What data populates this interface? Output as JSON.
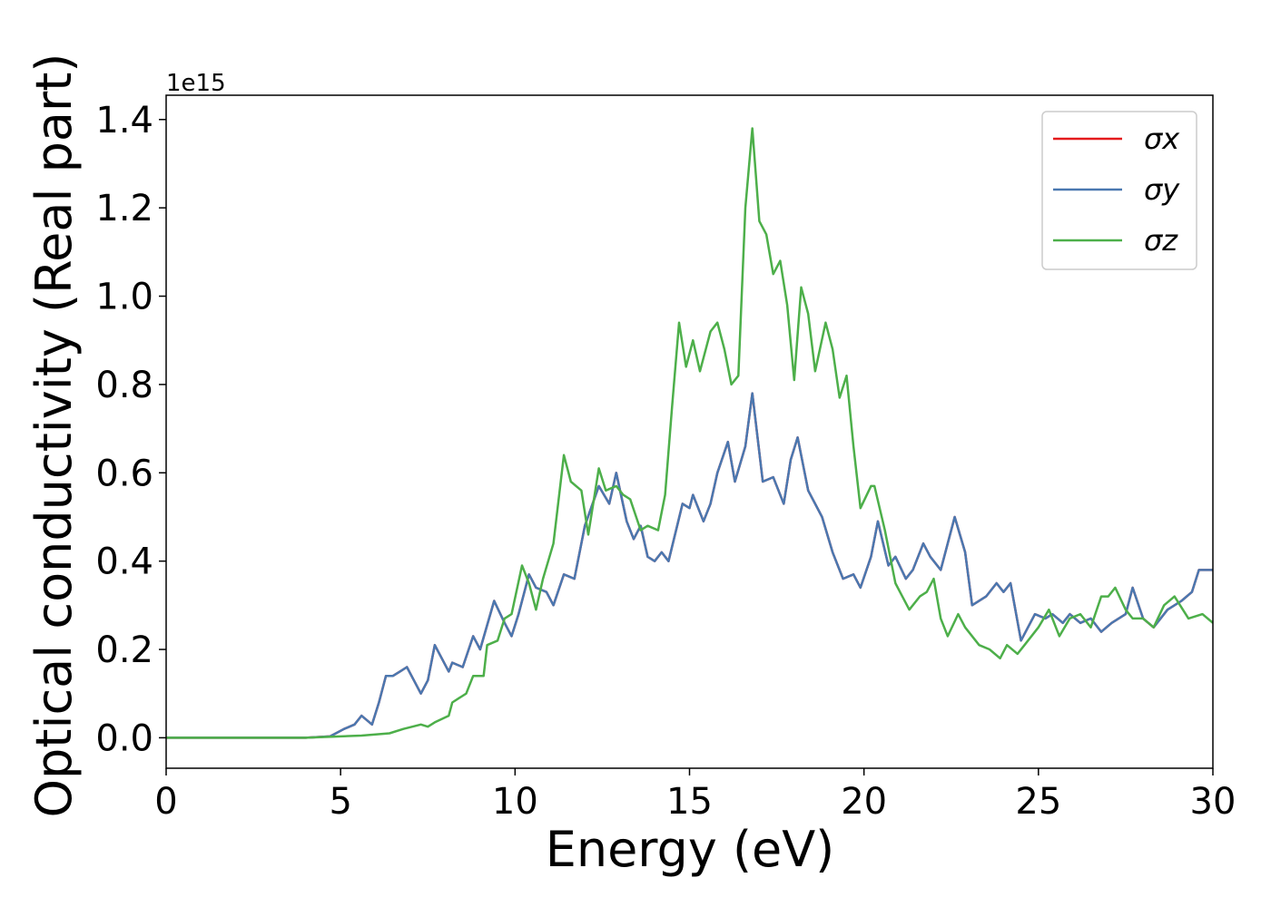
{
  "chart_data": {
    "type": "line",
    "xlabel": "Energy (eV)",
    "ylabel": "Optical conductivity (Real part)",
    "y_offset_text": "1e15",
    "xlim": [
      0,
      30
    ],
    "xticks": [
      0,
      5,
      10,
      15,
      20,
      25,
      30
    ],
    "ylim": [
      -0.069,
      1.455
    ],
    "yticks": [
      {
        "value": 0,
        "label": "0.0"
      },
      {
        "value": 0.2,
        "label": "0.2"
      },
      {
        "value": 0.4,
        "label": "0.4"
      },
      {
        "value": 0.6,
        "label": "0.6"
      },
      {
        "value": 0.8,
        "label": "0.8"
      },
      {
        "value": 1.0,
        "label": "1.0"
      },
      {
        "value": 1.2,
        "label": "1.2"
      },
      {
        "value": 1.4,
        "label": "1.4"
      }
    ],
    "grid": false,
    "legend": "upper right",
    "series": [
      {
        "name": "σx",
        "color": "#e41a1c",
        "x": [
          0,
          4,
          4.7,
          5.1,
          5.4,
          5.6,
          5.9,
          6.1,
          6.3,
          6.5,
          6.7,
          6.9,
          7.1,
          7.3,
          7.5,
          7.7,
          7.9,
          8.1,
          8.2,
          8.5,
          8.8,
          9.0,
          9.4,
          9.7,
          9.9,
          10.1,
          10.4,
          10.6,
          10.9,
          11.1,
          11.4,
          11.7,
          12.0,
          12.4,
          12.7,
          12.9,
          13.2,
          13.4,
          13.6,
          13.8,
          14.0,
          14.2,
          14.4,
          14.8,
          15.0,
          15.1,
          15.4,
          15.6,
          15.8,
          16.1,
          16.3,
          16.6,
          16.8,
          17.1,
          17.4,
          17.7,
          17.9,
          18.1,
          18.4,
          18.8,
          19.1,
          19.4,
          19.7,
          19.9,
          20.2,
          20.4,
          20.7,
          20.9,
          21.2,
          21.4,
          21.7,
          21.9,
          22.2,
          22.4,
          22.6,
          22.9,
          23.1,
          23.5,
          23.8,
          24.0,
          24.2,
          24.5,
          24.9,
          25.2,
          25.4,
          25.7,
          25.9,
          26.2,
          26.5,
          26.8,
          27.1,
          27.5,
          27.7,
          28.0,
          28.3,
          28.7,
          29.1,
          29.4,
          29.6,
          30
        ],
        "values": [
          0,
          0,
          0.003,
          0.02,
          0.03,
          0.05,
          0.03,
          0.08,
          0.14,
          0.14,
          0.15,
          0.16,
          0.13,
          0.1,
          0.13,
          0.21,
          0.18,
          0.15,
          0.17,
          0.16,
          0.23,
          0.2,
          0.31,
          0.26,
          0.23,
          0.28,
          0.37,
          0.34,
          0.33,
          0.3,
          0.37,
          0.36,
          0.48,
          0.57,
          0.53,
          0.6,
          0.49,
          0.45,
          0.48,
          0.41,
          0.4,
          0.42,
          0.4,
          0.53,
          0.52,
          0.55,
          0.49,
          0.53,
          0.6,
          0.67,
          0.58,
          0.66,
          0.78,
          0.58,
          0.59,
          0.53,
          0.63,
          0.68,
          0.56,
          0.5,
          0.42,
          0.36,
          0.37,
          0.34,
          0.41,
          0.49,
          0.39,
          0.41,
          0.36,
          0.38,
          0.44,
          0.41,
          0.38,
          0.44,
          0.5,
          0.42,
          0.3,
          0.32,
          0.35,
          0.33,
          0.35,
          0.22,
          0.28,
          0.27,
          0.28,
          0.26,
          0.28,
          0.26,
          0.27,
          0.24,
          0.26,
          0.28,
          0.34,
          0.27,
          0.25,
          0.29,
          0.31,
          0.33,
          0.38,
          0.38
        ]
      },
      {
        "name": "σy",
        "color": "#4a78b0",
        "x": [
          0,
          4,
          4.7,
          5.1,
          5.4,
          5.6,
          5.9,
          6.1,
          6.3,
          6.5,
          6.7,
          6.9,
          7.1,
          7.3,
          7.5,
          7.7,
          7.9,
          8.1,
          8.2,
          8.5,
          8.8,
          9.0,
          9.4,
          9.7,
          9.9,
          10.1,
          10.4,
          10.6,
          10.9,
          11.1,
          11.4,
          11.7,
          12.0,
          12.4,
          12.7,
          12.9,
          13.2,
          13.4,
          13.6,
          13.8,
          14.0,
          14.2,
          14.4,
          14.8,
          15.0,
          15.1,
          15.4,
          15.6,
          15.8,
          16.1,
          16.3,
          16.6,
          16.8,
          17.1,
          17.4,
          17.7,
          17.9,
          18.1,
          18.4,
          18.8,
          19.1,
          19.4,
          19.7,
          19.9,
          20.2,
          20.4,
          20.7,
          20.9,
          21.2,
          21.4,
          21.7,
          21.9,
          22.2,
          22.4,
          22.6,
          22.9,
          23.1,
          23.5,
          23.8,
          24.0,
          24.2,
          24.5,
          24.9,
          25.2,
          25.4,
          25.7,
          25.9,
          26.2,
          26.5,
          26.8,
          27.1,
          27.5,
          27.7,
          28.0,
          28.3,
          28.7,
          29.1,
          29.4,
          29.6,
          30
        ],
        "values": [
          0,
          0,
          0.003,
          0.02,
          0.03,
          0.05,
          0.03,
          0.08,
          0.14,
          0.14,
          0.15,
          0.16,
          0.13,
          0.1,
          0.13,
          0.21,
          0.18,
          0.15,
          0.17,
          0.16,
          0.23,
          0.2,
          0.31,
          0.26,
          0.23,
          0.28,
          0.37,
          0.34,
          0.33,
          0.3,
          0.37,
          0.36,
          0.48,
          0.57,
          0.53,
          0.6,
          0.49,
          0.45,
          0.48,
          0.41,
          0.4,
          0.42,
          0.4,
          0.53,
          0.52,
          0.55,
          0.49,
          0.53,
          0.6,
          0.67,
          0.58,
          0.66,
          0.78,
          0.58,
          0.59,
          0.53,
          0.63,
          0.68,
          0.56,
          0.5,
          0.42,
          0.36,
          0.37,
          0.34,
          0.41,
          0.49,
          0.39,
          0.41,
          0.36,
          0.38,
          0.44,
          0.41,
          0.38,
          0.44,
          0.5,
          0.42,
          0.3,
          0.32,
          0.35,
          0.33,
          0.35,
          0.22,
          0.28,
          0.27,
          0.28,
          0.26,
          0.28,
          0.26,
          0.27,
          0.24,
          0.26,
          0.28,
          0.34,
          0.27,
          0.25,
          0.29,
          0.31,
          0.33,
          0.38,
          0.38
        ]
      },
      {
        "name": "σz",
        "color": "#4daf4a",
        "x": [
          0,
          4,
          5.6,
          6.4,
          6.8,
          7.3,
          7.5,
          7.7,
          8.1,
          8.2,
          8.4,
          8.6,
          8.8,
          9.1,
          9.2,
          9.5,
          9.7,
          9.9,
          10.2,
          10.4,
          10.6,
          10.8,
          11.1,
          11.4,
          11.6,
          11.9,
          12.1,
          12.4,
          12.6,
          12.9,
          13.1,
          13.3,
          13.6,
          13.8,
          14.1,
          14.3,
          14.5,
          14.7,
          14.9,
          15.1,
          15.3,
          15.6,
          15.8,
          16.0,
          16.2,
          16.4,
          16.6,
          16.8,
          17.0,
          17.2,
          17.4,
          17.6,
          17.8,
          18.0,
          18.2,
          18.4,
          18.6,
          18.9,
          19.1,
          19.3,
          19.5,
          19.7,
          19.9,
          20.2,
          20.3,
          20.6,
          20.9,
          21.1,
          21.3,
          21.6,
          21.8,
          22.0,
          22.2,
          22.4,
          22.7,
          22.9,
          23.3,
          23.6,
          23.9,
          24.1,
          24.4,
          24.6,
          25.0,
          25.3,
          25.6,
          25.9,
          26.2,
          26.5,
          26.8,
          27.0,
          27.2,
          27.5,
          27.7,
          28.0,
          28.3,
          28.6,
          28.9,
          29.3,
          29.7,
          30
        ],
        "values": [
          0,
          0,
          0.005,
          0.01,
          0.02,
          0.03,
          0.025,
          0.035,
          0.05,
          0.08,
          0.09,
          0.1,
          0.14,
          0.14,
          0.21,
          0.22,
          0.27,
          0.28,
          0.39,
          0.35,
          0.29,
          0.36,
          0.44,
          0.64,
          0.58,
          0.56,
          0.46,
          0.61,
          0.56,
          0.57,
          0.55,
          0.54,
          0.47,
          0.48,
          0.47,
          0.55,
          0.75,
          0.94,
          0.84,
          0.9,
          0.83,
          0.92,
          0.94,
          0.88,
          0.8,
          0.82,
          1.2,
          1.38,
          1.17,
          1.14,
          1.05,
          1.08,
          0.98,
          0.81,
          1.02,
          0.96,
          0.83,
          0.94,
          0.88,
          0.77,
          0.82,
          0.66,
          0.52,
          0.57,
          0.57,
          0.47,
          0.35,
          0.32,
          0.29,
          0.32,
          0.33,
          0.36,
          0.27,
          0.23,
          0.28,
          0.25,
          0.21,
          0.2,
          0.18,
          0.21,
          0.19,
          0.21,
          0.25,
          0.29,
          0.23,
          0.27,
          0.28,
          0.25,
          0.32,
          0.32,
          0.34,
          0.29,
          0.27,
          0.27,
          0.25,
          0.3,
          0.32,
          0.27,
          0.28,
          0.26
        ]
      }
    ]
  }
}
